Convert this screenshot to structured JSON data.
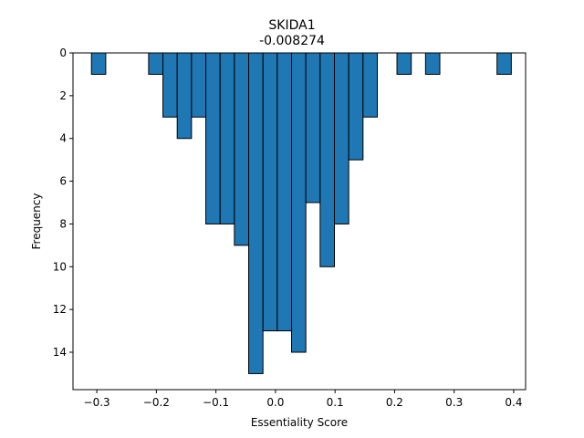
{
  "chart_data": {
    "type": "bar",
    "title": "SKIDA1",
    "subtitle": "-0.008274",
    "xlabel": "Essentiality Score",
    "ylabel": "Frequency",
    "xlim": [
      -0.34,
      0.42
    ],
    "ylim": [
      15.75,
      0
    ],
    "y_inverted": true,
    "grid": false,
    "bar_color": "#1f77b4",
    "edge_color": "#000000",
    "bin_width": 0.024,
    "x_ticks": [
      -0.3,
      -0.2,
      -0.1,
      0.0,
      0.1,
      0.2,
      0.3,
      0.4
    ],
    "x_tick_labels": [
      "−0.3",
      "−0.2",
      "−0.1",
      "0.0",
      "0.1",
      "0.2",
      "0.3",
      "0.4"
    ],
    "y_ticks": [
      0,
      2,
      4,
      6,
      8,
      10,
      12,
      14
    ],
    "y_tick_labels": [
      "0",
      "2",
      "4",
      "6",
      "8",
      "10",
      "12",
      "14"
    ],
    "bins": [
      {
        "x0": -0.309,
        "count": 1
      },
      {
        "x0": -0.213,
        "count": 1
      },
      {
        "x0": -0.189,
        "count": 3
      },
      {
        "x0": -0.165,
        "count": 4
      },
      {
        "x0": -0.141,
        "count": 3
      },
      {
        "x0": -0.117,
        "count": 8
      },
      {
        "x0": -0.093,
        "count": 8
      },
      {
        "x0": -0.069,
        "count": 9
      },
      {
        "x0": -0.045,
        "count": 15
      },
      {
        "x0": -0.021,
        "count": 13
      },
      {
        "x0": 0.003,
        "count": 13
      },
      {
        "x0": 0.027,
        "count": 14
      },
      {
        "x0": 0.051,
        "count": 7
      },
      {
        "x0": 0.075,
        "count": 10
      },
      {
        "x0": 0.099,
        "count": 8
      },
      {
        "x0": 0.123,
        "count": 5
      },
      {
        "x0": 0.147,
        "count": 3
      },
      {
        "x0": 0.204,
        "count": 1
      },
      {
        "x0": 0.252,
        "count": 1
      },
      {
        "x0": 0.372,
        "count": 1
      }
    ]
  }
}
